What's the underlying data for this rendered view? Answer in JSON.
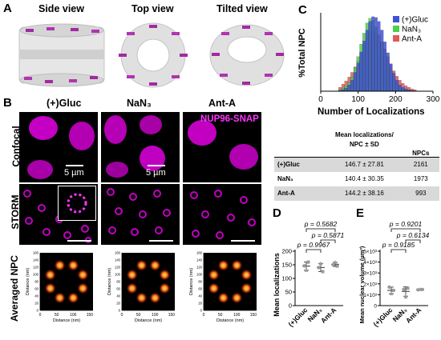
{
  "panels": {
    "A": "A",
    "B": "B",
    "C": "C",
    "D": "D",
    "E": "E"
  },
  "panel_a": {
    "views": [
      "Side view",
      "Top view",
      "Tilted view"
    ]
  },
  "panel_b": {
    "columns": [
      "(+)Gluc",
      "NaN₃",
      "Ant-A"
    ],
    "rows": [
      "Confocal",
      "STORM",
      "Averaged NPC"
    ],
    "stain_label": "NUP96-SNAP",
    "scale_label": "5 µm",
    "avg_axes": {
      "ylabel": "Distance (nm)",
      "xlabel": "Distance (nm)",
      "ticks": [
        "0",
        "50",
        "100",
        "150"
      ],
      "yticks": [
        "0",
        "20",
        "40",
        "60",
        "80",
        "100",
        "120",
        "140",
        "160"
      ]
    },
    "colors": {
      "magenta": "#d400d4",
      "stain_text": "#ff33ff"
    }
  },
  "table": {
    "headers": [
      "",
      "Mean localizations/ NPC ± SD",
      "NPCs"
    ],
    "rows": [
      {
        "condition": "(+)Gluc",
        "mean": "146.7 ± 27.81",
        "npcs": "2161"
      },
      {
        "condition": "NaN₃",
        "mean": "140.4 ± 30.35",
        "npcs": "1973"
      },
      {
        "condition": "Ant-A",
        "mean": "144.2 ± 38.16",
        "npcs": "993"
      }
    ]
  },
  "chart_data": [
    {
      "panel": "C",
      "type": "bar",
      "subtype": "overlapping histogram",
      "xlabel": "Number of Localizations",
      "ylabel": "%Total NPC",
      "xlim": [
        0,
        300
      ],
      "xticks": [
        0,
        100,
        200,
        300
      ],
      "bin_width": 8,
      "legend_position": "top-right",
      "series": [
        {
          "name": "(+)Gluc",
          "color": "#3f51d8",
          "x": [
            52,
            60,
            68,
            76,
            84,
            92,
            100,
            108,
            116,
            124,
            132,
            140,
            148,
            156,
            164,
            172,
            180,
            188,
            196,
            204,
            212,
            220,
            228,
            236,
            244,
            252
          ],
          "values": [
            0.1,
            0.2,
            0.4,
            0.8,
            1.4,
            2.4,
            3.6,
            5.0,
            6.4,
            7.8,
            8.9,
            9.5,
            9.4,
            8.9,
            7.8,
            6.3,
            4.9,
            3.5,
            2.3,
            1.4,
            0.8,
            0.5,
            0.3,
            0.2,
            0.1,
            0.05
          ]
        },
        {
          "name": "NaN₃",
          "color": "#4ed04e",
          "x": [
            52,
            60,
            68,
            76,
            84,
            92,
            100,
            108,
            116,
            124,
            132,
            140,
            148,
            156,
            164,
            172,
            180,
            188,
            196,
            204,
            212,
            220,
            228,
            236,
            244,
            252
          ],
          "values": [
            0.2,
            0.4,
            0.7,
            1.1,
            1.8,
            3.0,
            4.4,
            6.0,
            7.4,
            8.7,
            9.3,
            9.0,
            8.2,
            7.2,
            6.0,
            4.8,
            3.6,
            2.6,
            1.7,
            1.0,
            0.6,
            0.4,
            0.2,
            0.1,
            0.05,
            0.0
          ]
        },
        {
          "name": "Ant-A",
          "color": "#e05a5a",
          "x": [
            52,
            60,
            68,
            76,
            84,
            92,
            100,
            108,
            116,
            124,
            132,
            140,
            148,
            156,
            164,
            172,
            180,
            188,
            196,
            204,
            212,
            220,
            228,
            236,
            244,
            252
          ],
          "values": [
            0.5,
            0.9,
            1.3,
            1.8,
            2.4,
            3.1,
            3.9,
            4.9,
            5.9,
            6.9,
            7.5,
            7.8,
            7.6,
            7.1,
            6.3,
            5.4,
            4.4,
            3.4,
            2.6,
            1.9,
            1.4,
            1.0,
            0.7,
            0.5,
            0.3,
            0.2
          ]
        }
      ]
    },
    {
      "panel": "D",
      "type": "scatter",
      "ylabel": "Mean localizations",
      "categories": [
        "(+)Gluc",
        "NaN₃",
        "Ant-A"
      ],
      "ylim": [
        0,
        200
      ],
      "yticks": [
        0,
        50,
        100,
        150,
        200
      ],
      "points": [
        [
          146,
          130,
          160
        ],
        [
          140,
          155,
          125
        ],
        [
          150,
          160,
          145
        ]
      ],
      "comparisons": [
        {
          "pair": [
            "(+)Gluc",
            "NaN₃"
          ],
          "label": "p = 0.9967"
        },
        {
          "pair": [
            "NaN₃",
            "Ant-A"
          ],
          "label": "p = 0.5871"
        },
        {
          "pair": [
            "(+)Gluc",
            "Ant-A"
          ],
          "label": "p = 0.5682"
        }
      ]
    },
    {
      "panel": "E",
      "type": "scatter",
      "ylabel": "Mean nuclear volume (µm³)",
      "categories": [
        "(+)Gluc",
        "NaN₃",
        "Ant-A"
      ],
      "ylim": [
        0,
        5000
      ],
      "yticks": [
        "0",
        "1×10³",
        "2×10³",
        "3×10³",
        "4×10³",
        "5×10³"
      ],
      "points": [
        [
          1700,
          1100,
          1400
        ],
        [
          1500,
          800,
          1600
        ],
        [
          1450,
          1500,
          1480
        ]
      ],
      "comparisons": [
        {
          "pair": [
            "(+)Gluc",
            "NaN₃"
          ],
          "label": "p = 0.9185"
        },
        {
          "pair": [
            "NaN₃",
            "Ant-A"
          ],
          "label": "p = 0.6134"
        },
        {
          "pair": [
            "(+)Gluc",
            "Ant-A"
          ],
          "label": "p = 0.9201"
        }
      ]
    }
  ]
}
